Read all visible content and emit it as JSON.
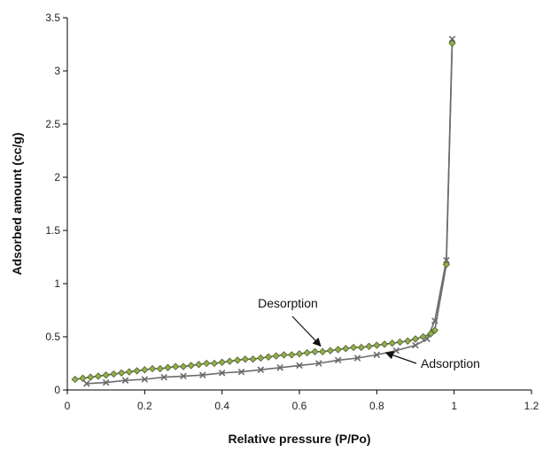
{
  "chart_data": {
    "type": "line",
    "title": "",
    "xlabel": "Relative pressure (P/Po)",
    "ylabel": "Adsorbed amount (cc/g)",
    "xlim": [
      0,
      1.2
    ],
    "ylim": [
      0,
      3.5
    ],
    "x_ticks": [
      "0",
      "0.2",
      "0.4",
      "0.6",
      "0.8",
      "1",
      "1.2"
    ],
    "y_ticks": [
      "0",
      "0.5",
      "1",
      "1.5",
      "2",
      "2.5",
      "3",
      "3.5"
    ],
    "grid": false,
    "legend": "none",
    "colors": {
      "line": "#6b6b6b",
      "marker_fill": "#8fb04a",
      "marker_edge": "#4f5f2a",
      "axis": "#000000"
    },
    "series": [
      {
        "id": "adsorption",
        "marker": "x",
        "x": [
          0.05,
          0.1,
          0.15,
          0.2,
          0.25,
          0.3,
          0.35,
          0.4,
          0.45,
          0.5,
          0.55,
          0.6,
          0.65,
          0.7,
          0.75,
          0.8,
          0.85,
          0.9,
          0.93,
          0.95,
          0.98,
          0.995
        ],
        "y": [
          0.06,
          0.07,
          0.09,
          0.1,
          0.12,
          0.13,
          0.14,
          0.16,
          0.17,
          0.19,
          0.21,
          0.23,
          0.25,
          0.28,
          0.3,
          0.33,
          0.37,
          0.42,
          0.48,
          0.65,
          1.22,
          3.3
        ]
      },
      {
        "id": "desorption",
        "marker": "diamond",
        "x": [
          0.995,
          0.98,
          0.95,
          0.94,
          0.92,
          0.9,
          0.88,
          0.86,
          0.84,
          0.82,
          0.8,
          0.78,
          0.76,
          0.74,
          0.72,
          0.7,
          0.68,
          0.66,
          0.64,
          0.62,
          0.6,
          0.58,
          0.56,
          0.54,
          0.52,
          0.5,
          0.48,
          0.46,
          0.44,
          0.42,
          0.4,
          0.38,
          0.36,
          0.34,
          0.32,
          0.3,
          0.28,
          0.26,
          0.24,
          0.22,
          0.2,
          0.18,
          0.16,
          0.14,
          0.12,
          0.1,
          0.08,
          0.06,
          0.04,
          0.02
        ],
        "y": [
          3.26,
          1.18,
          0.56,
          0.53,
          0.5,
          0.48,
          0.46,
          0.45,
          0.44,
          0.43,
          0.42,
          0.41,
          0.4,
          0.4,
          0.39,
          0.38,
          0.37,
          0.36,
          0.36,
          0.35,
          0.34,
          0.33,
          0.33,
          0.32,
          0.31,
          0.3,
          0.29,
          0.29,
          0.28,
          0.27,
          0.26,
          0.25,
          0.25,
          0.24,
          0.23,
          0.22,
          0.22,
          0.21,
          0.2,
          0.2,
          0.19,
          0.18,
          0.17,
          0.16,
          0.15,
          0.14,
          0.13,
          0.12,
          0.11,
          0.1
        ]
      }
    ],
    "annotations": [
      {
        "text": "Desorption",
        "point_x": 0.65,
        "point_y": 0.39
      },
      {
        "text": "Adsorption",
        "point_x": 0.81,
        "point_y": 0.35
      }
    ]
  }
}
